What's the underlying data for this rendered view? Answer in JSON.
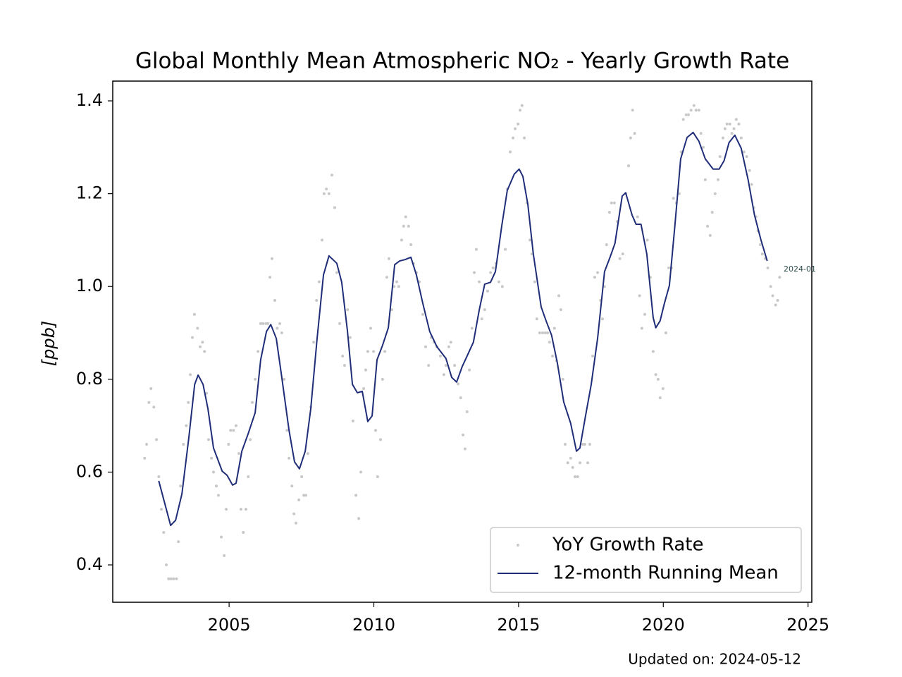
{
  "chart_data": {
    "type": "line",
    "title": "Global Monthly Mean Atmospheric NO₂ - Yearly Growth Rate",
    "ylabel": "[ppb]",
    "footer": "Updated on: 2024-05-12",
    "annotation": "2024-01",
    "xlim": [
      2000.98,
      2025.13
    ],
    "ylim": [
      0.3195,
      1.4426
    ],
    "xticks": [
      2005,
      2010,
      2015,
      2020,
      2025
    ],
    "yticks": [
      0.4,
      0.6,
      0.8,
      {
        "value": 1,
        "label": "1.0"
      },
      1.2,
      1.4
    ],
    "legend": "lower right",
    "series": [
      {
        "name": "YoY Growth Rate",
        "color": "#c8c8c8",
        "style": "scatter",
        "x": [
          2002.08,
          2002.15,
          2002.23,
          2002.3,
          2002.4,
          2002.49,
          2002.57,
          2002.66,
          2002.74,
          2002.83,
          2002.91,
          2002.99,
          2003.08,
          2003.18,
          2003.25,
          2003.32,
          2003.42,
          2003.52,
          2003.59,
          2003.66,
          2003.73,
          2003.8,
          2003.91,
          2004.0,
          2004.08,
          2004.15,
          2004.22,
          2004.29,
          2004.39,
          2004.46,
          2004.56,
          2004.63,
          2004.73,
          2004.83,
          2004.9,
          2004.98,
          2005.05,
          2005.15,
          2005.24,
          2005.34,
          2005.41,
          2005.49,
          2005.58,
          2005.66,
          2005.73,
          2005.8,
          2005.9,
          2006.0,
          2006.09,
          2006.17,
          2006.27,
          2006.34,
          2006.41,
          2006.48,
          2006.58,
          2006.66,
          2006.75,
          2006.82,
          2006.9,
          2007.0,
          2007.07,
          2007.17,
          2007.24,
          2007.31,
          2007.41,
          2007.51,
          2007.58,
          2007.65,
          2007.72,
          2007.82,
          2007.92,
          2008.02,
          2008.11,
          2008.21,
          2008.28,
          2008.36,
          2008.45,
          2008.55,
          2008.65,
          2008.72,
          2008.82,
          2008.92,
          2008.99,
          2009.09,
          2009.18,
          2009.28,
          2009.38,
          2009.48,
          2009.55,
          2009.65,
          2009.72,
          2009.79,
          2009.89,
          2009.99,
          2010.06,
          2010.13,
          2010.23,
          2010.3,
          2010.38,
          2010.45,
          2010.52,
          2010.62,
          2010.7,
          2010.79,
          2010.86,
          2010.96,
          2011.03,
          2011.1,
          2011.2,
          2011.28,
          2011.37,
          2011.47,
          2011.57,
          2011.69,
          2011.79,
          2011.89,
          2011.98,
          2012.08,
          2012.18,
          2012.3,
          2012.42,
          2012.49,
          2012.59,
          2012.66,
          2012.79,
          2012.91,
          2013.0,
          2013.08,
          2013.15,
          2013.22,
          2013.3,
          2013.39,
          2013.47,
          2013.54,
          2013.64,
          2013.73,
          2013.83,
          2013.93,
          2014.03,
          2014.12,
          2014.22,
          2014.32,
          2014.44,
          2014.54,
          2014.61,
          2014.71,
          2014.81,
          2014.88,
          2014.98,
          2015.05,
          2015.12,
          2015.2,
          2015.29,
          2015.39,
          2015.46,
          2015.56,
          2015.63,
          2015.73,
          2015.83,
          2015.92,
          2016.0,
          2016.07,
          2016.17,
          2016.24,
          2016.31,
          2016.39,
          2016.46,
          2016.53,
          2016.61,
          2016.7,
          2016.8,
          2016.87,
          2016.95,
          2017.04,
          2017.12,
          2017.22,
          2017.29,
          2017.39,
          2017.46,
          2017.56,
          2017.63,
          2017.73,
          2017.83,
          2017.9,
          2017.97,
          2018.04,
          2018.14,
          2018.21,
          2018.31,
          2018.41,
          2018.5,
          2018.6,
          2018.7,
          2018.8,
          2018.87,
          2018.94,
          2019.01,
          2019.11,
          2019.18,
          2019.26,
          2019.36,
          2019.45,
          2019.55,
          2019.65,
          2019.74,
          2019.82,
          2019.89,
          2019.99,
          2020.09,
          2020.19,
          2020.28,
          2020.35,
          2020.45,
          2020.55,
          2020.62,
          2020.69,
          2020.79,
          2020.87,
          2020.96,
          2021.06,
          2021.13,
          2021.23,
          2021.3,
          2021.38,
          2021.45,
          2021.53,
          2021.62,
          2021.69,
          2021.79,
          2021.89,
          2021.96,
          2022.06,
          2022.13,
          2022.2,
          2022.3,
          2022.37,
          2022.44,
          2022.52,
          2022.61,
          2022.69,
          2022.79,
          2022.88,
          2022.98,
          2023.05,
          2023.13,
          2023.2,
          2023.27,
          2023.35,
          2023.42,
          2023.52,
          2023.61,
          2023.71,
          2023.78,
          2023.88,
          2023.95,
          2024.02
        ],
        "values": [
          0.63,
          0.66,
          0.75,
          0.78,
          0.74,
          0.67,
          0.59,
          0.52,
          0.47,
          0.4,
          0.37,
          0.37,
          0.37,
          0.37,
          0.45,
          0.57,
          0.66,
          0.7,
          0.75,
          0.81,
          0.89,
          0.94,
          0.91,
          0.87,
          0.88,
          0.86,
          0.77,
          0.67,
          0.63,
          0.6,
          0.57,
          0.55,
          0.46,
          0.42,
          0.52,
          0.66,
          0.69,
          0.69,
          0.7,
          0.64,
          0.52,
          0.47,
          0.52,
          0.59,
          0.67,
          0.75,
          0.8,
          0.86,
          0.92,
          0.92,
          0.92,
          0.92,
          1.02,
          1.06,
          0.97,
          0.91,
          0.92,
          0.9,
          0.8,
          0.69,
          0.63,
          0.57,
          0.51,
          0.49,
          0.54,
          0.59,
          0.55,
          0.55,
          0.64,
          0.74,
          0.88,
          0.97,
          1.01,
          1.1,
          1.2,
          1.21,
          1.2,
          1.24,
          1.17,
          1.03,
          0.92,
          0.85,
          0.83,
          0.95,
          0.89,
          0.71,
          0.55,
          0.5,
          0.6,
          0.78,
          0.82,
          0.86,
          0.91,
          0.86,
          0.69,
          0.59,
          0.67,
          0.8,
          0.86,
          1.02,
          1.06,
          0.95,
          1.0,
          1.01,
          1.0,
          1.1,
          1.13,
          1.15,
          1.13,
          1.09,
          1.05,
          1.03,
          1.01,
          0.94,
          0.87,
          0.83,
          0.89,
          0.88,
          0.87,
          0.85,
          0.81,
          0.83,
          0.87,
          0.88,
          0.83,
          0.79,
          0.76,
          0.68,
          0.65,
          0.73,
          0.82,
          0.91,
          1.03,
          1.08,
          1.01,
          0.93,
          0.95,
          0.99,
          1.03,
          1.04,
          1.05,
          1.01,
          1.0,
          1.08,
          1.21,
          1.29,
          1.32,
          1.34,
          1.35,
          1.38,
          1.39,
          1.32,
          1.18,
          1.1,
          1.07,
          1.01,
          0.93,
          0.9,
          0.9,
          0.9,
          0.9,
          0.88,
          0.85,
          0.91,
          0.84,
          0.98,
          0.95,
          0.8,
          0.66,
          0.62,
          0.63,
          0.61,
          0.59,
          0.59,
          0.62,
          0.66,
          0.66,
          0.62,
          0.66,
          0.85,
          1.02,
          1.03,
          0.97,
          0.93,
          1.0,
          1.09,
          1.16,
          1.18,
          1.18,
          1.14,
          1.06,
          1.07,
          1.2,
          1.26,
          1.32,
          1.38,
          1.33,
          1.15,
          0.98,
          0.91,
          0.94,
          1.1,
          1.02,
          0.86,
          0.81,
          0.8,
          0.76,
          0.78,
          0.9,
          1.04,
          1.04,
          1.19,
          1.18,
          1.2,
          1.29,
          1.36,
          1.37,
          1.37,
          1.38,
          1.39,
          1.38,
          1.38,
          1.33,
          1.3,
          1.23,
          1.13,
          1.11,
          1.16,
          1.2,
          1.23,
          1.28,
          1.32,
          1.34,
          1.35,
          1.35,
          1.33,
          1.34,
          1.36,
          1.35,
          1.32,
          1.29,
          1.28,
          1.25,
          1.22,
          1.17,
          1.15,
          1.12,
          1.09,
          1.07,
          1.06,
          1.04,
          1.0,
          0.98,
          0.96,
          0.97,
          1.02
        ]
      },
      {
        "name": "12-month Running Mean",
        "color": "#1f2d78",
        "style": "line",
        "x": [
          2002.57,
          2002.98,
          2003.15,
          2003.37,
          2003.61,
          2003.81,
          2003.93,
          2004.1,
          2004.27,
          2004.46,
          2004.76,
          2004.93,
          2005.12,
          2005.24,
          2005.44,
          2005.66,
          2005.9,
          2006.09,
          2006.29,
          2006.44,
          2006.63,
          2006.82,
          2007.07,
          2007.26,
          2007.43,
          2007.63,
          2007.82,
          2008.04,
          2008.26,
          2008.45,
          2008.72,
          2008.89,
          2009.09,
          2009.26,
          2009.43,
          2009.6,
          2009.79,
          2009.94,
          2010.11,
          2010.3,
          2010.5,
          2010.72,
          2010.89,
          2011.08,
          2011.28,
          2011.47,
          2011.69,
          2011.93,
          2012.18,
          2012.49,
          2012.69,
          2012.86,
          2013.05,
          2013.25,
          2013.44,
          2013.64,
          2013.83,
          2014.03,
          2014.2,
          2014.42,
          2014.61,
          2014.85,
          2015.02,
          2015.15,
          2015.32,
          2015.51,
          2015.78,
          2015.95,
          2016.14,
          2016.34,
          2016.56,
          2016.8,
          2017.0,
          2017.12,
          2017.29,
          2017.51,
          2017.73,
          2017.97,
          2018.16,
          2018.33,
          2018.58,
          2018.7,
          2018.92,
          2019.06,
          2019.23,
          2019.43,
          2019.65,
          2019.74,
          2019.89,
          2020.04,
          2020.21,
          2020.4,
          2020.6,
          2020.82,
          2021.03,
          2021.23,
          2021.45,
          2021.72,
          2021.93,
          2022.1,
          2022.27,
          2022.47,
          2022.69,
          2022.93,
          2023.15,
          2023.37,
          2023.59
        ],
        "values": [
          0.581,
          0.485,
          0.496,
          0.553,
          0.675,
          0.789,
          0.809,
          0.789,
          0.736,
          0.652,
          0.602,
          0.593,
          0.572,
          0.576,
          0.645,
          0.683,
          0.728,
          0.842,
          0.903,
          0.918,
          0.888,
          0.804,
          0.69,
          0.622,
          0.607,
          0.645,
          0.736,
          0.888,
          1.025,
          1.066,
          1.05,
          1.009,
          0.903,
          0.789,
          0.771,
          0.774,
          0.709,
          0.721,
          0.842,
          0.873,
          0.911,
          1.047,
          1.055,
          1.058,
          1.063,
          1.025,
          0.964,
          0.903,
          0.87,
          0.845,
          0.804,
          0.794,
          0.827,
          0.854,
          0.88,
          0.949,
          1.005,
          1.009,
          1.032,
          1.131,
          1.207,
          1.242,
          1.253,
          1.237,
          1.177,
          1.07,
          0.956,
          0.926,
          0.895,
          0.835,
          0.751,
          0.705,
          0.645,
          0.652,
          0.713,
          0.789,
          0.888,
          1.032,
          1.063,
          1.093,
          1.195,
          1.202,
          1.154,
          1.134,
          1.134,
          1.07,
          0.933,
          0.911,
          0.926,
          0.964,
          1.002,
          1.131,
          1.275,
          1.321,
          1.332,
          1.313,
          1.275,
          1.253,
          1.253,
          1.271,
          1.31,
          1.326,
          1.298,
          1.23,
          1.154,
          1.101,
          1.055
        ]
      }
    ]
  }
}
